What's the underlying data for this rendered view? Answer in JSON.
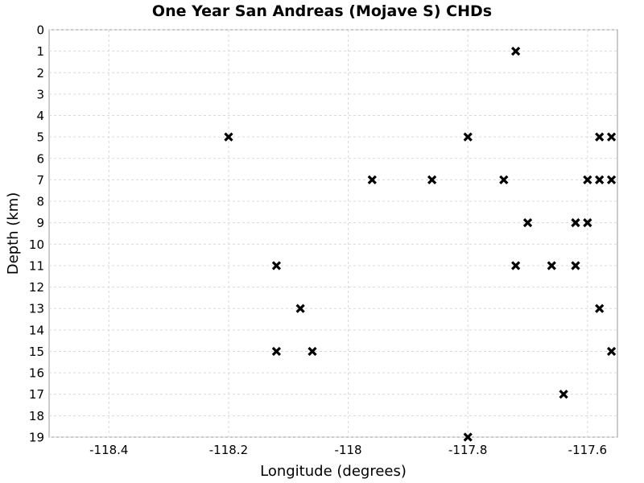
{
  "chart_data": {
    "type": "scatter",
    "title": "One Year San Andreas (Mojave S) CHDs",
    "xlabel": "Longitude (degrees)",
    "ylabel": "Depth (km)",
    "xlim": [
      -118.5,
      -117.55
    ],
    "ylim": [
      0,
      19
    ],
    "y_inverted": true,
    "x_ticks": [
      -118.4,
      -118.2,
      -118,
      -117.8,
      -117.6
    ],
    "x_tick_labels": [
      "-118.4",
      "-118.2",
      "-118",
      "-117.8",
      "-117.6"
    ],
    "y_ticks": [
      0,
      1,
      2,
      3,
      4,
      5,
      6,
      7,
      8,
      9,
      10,
      11,
      12,
      13,
      14,
      15,
      16,
      17,
      18,
      19
    ],
    "y_tick_labels": [
      "0",
      "1",
      "2",
      "3",
      "4",
      "5",
      "6",
      "7",
      "8",
      "9",
      "10",
      "11",
      "12",
      "13",
      "14",
      "15",
      "16",
      "17",
      "18",
      "19"
    ],
    "grid": true,
    "marker": "x",
    "marker_color": "#000000",
    "series": [
      {
        "points": [
          {
            "x": -117.72,
            "y": 1
          },
          {
            "x": -118.2,
            "y": 5
          },
          {
            "x": -117.8,
            "y": 5
          },
          {
            "x": -117.58,
            "y": 5
          },
          {
            "x": -117.56,
            "y": 5
          },
          {
            "x": -117.96,
            "y": 7
          },
          {
            "x": -117.86,
            "y": 7
          },
          {
            "x": -117.74,
            "y": 7
          },
          {
            "x": -117.6,
            "y": 7
          },
          {
            "x": -117.58,
            "y": 7
          },
          {
            "x": -117.56,
            "y": 7
          },
          {
            "x": -117.7,
            "y": 9
          },
          {
            "x": -117.62,
            "y": 9
          },
          {
            "x": -117.6,
            "y": 9
          },
          {
            "x": -118.12,
            "y": 11
          },
          {
            "x": -117.72,
            "y": 11
          },
          {
            "x": -117.66,
            "y": 11
          },
          {
            "x": -117.62,
            "y": 11
          },
          {
            "x": -118.08,
            "y": 13
          },
          {
            "x": -117.58,
            "y": 13
          },
          {
            "x": -118.12,
            "y": 15
          },
          {
            "x": -118.06,
            "y": 15
          },
          {
            "x": -117.56,
            "y": 15
          },
          {
            "x": -117.64,
            "y": 17
          },
          {
            "x": -117.8,
            "y": 19
          }
        ]
      }
    ]
  }
}
